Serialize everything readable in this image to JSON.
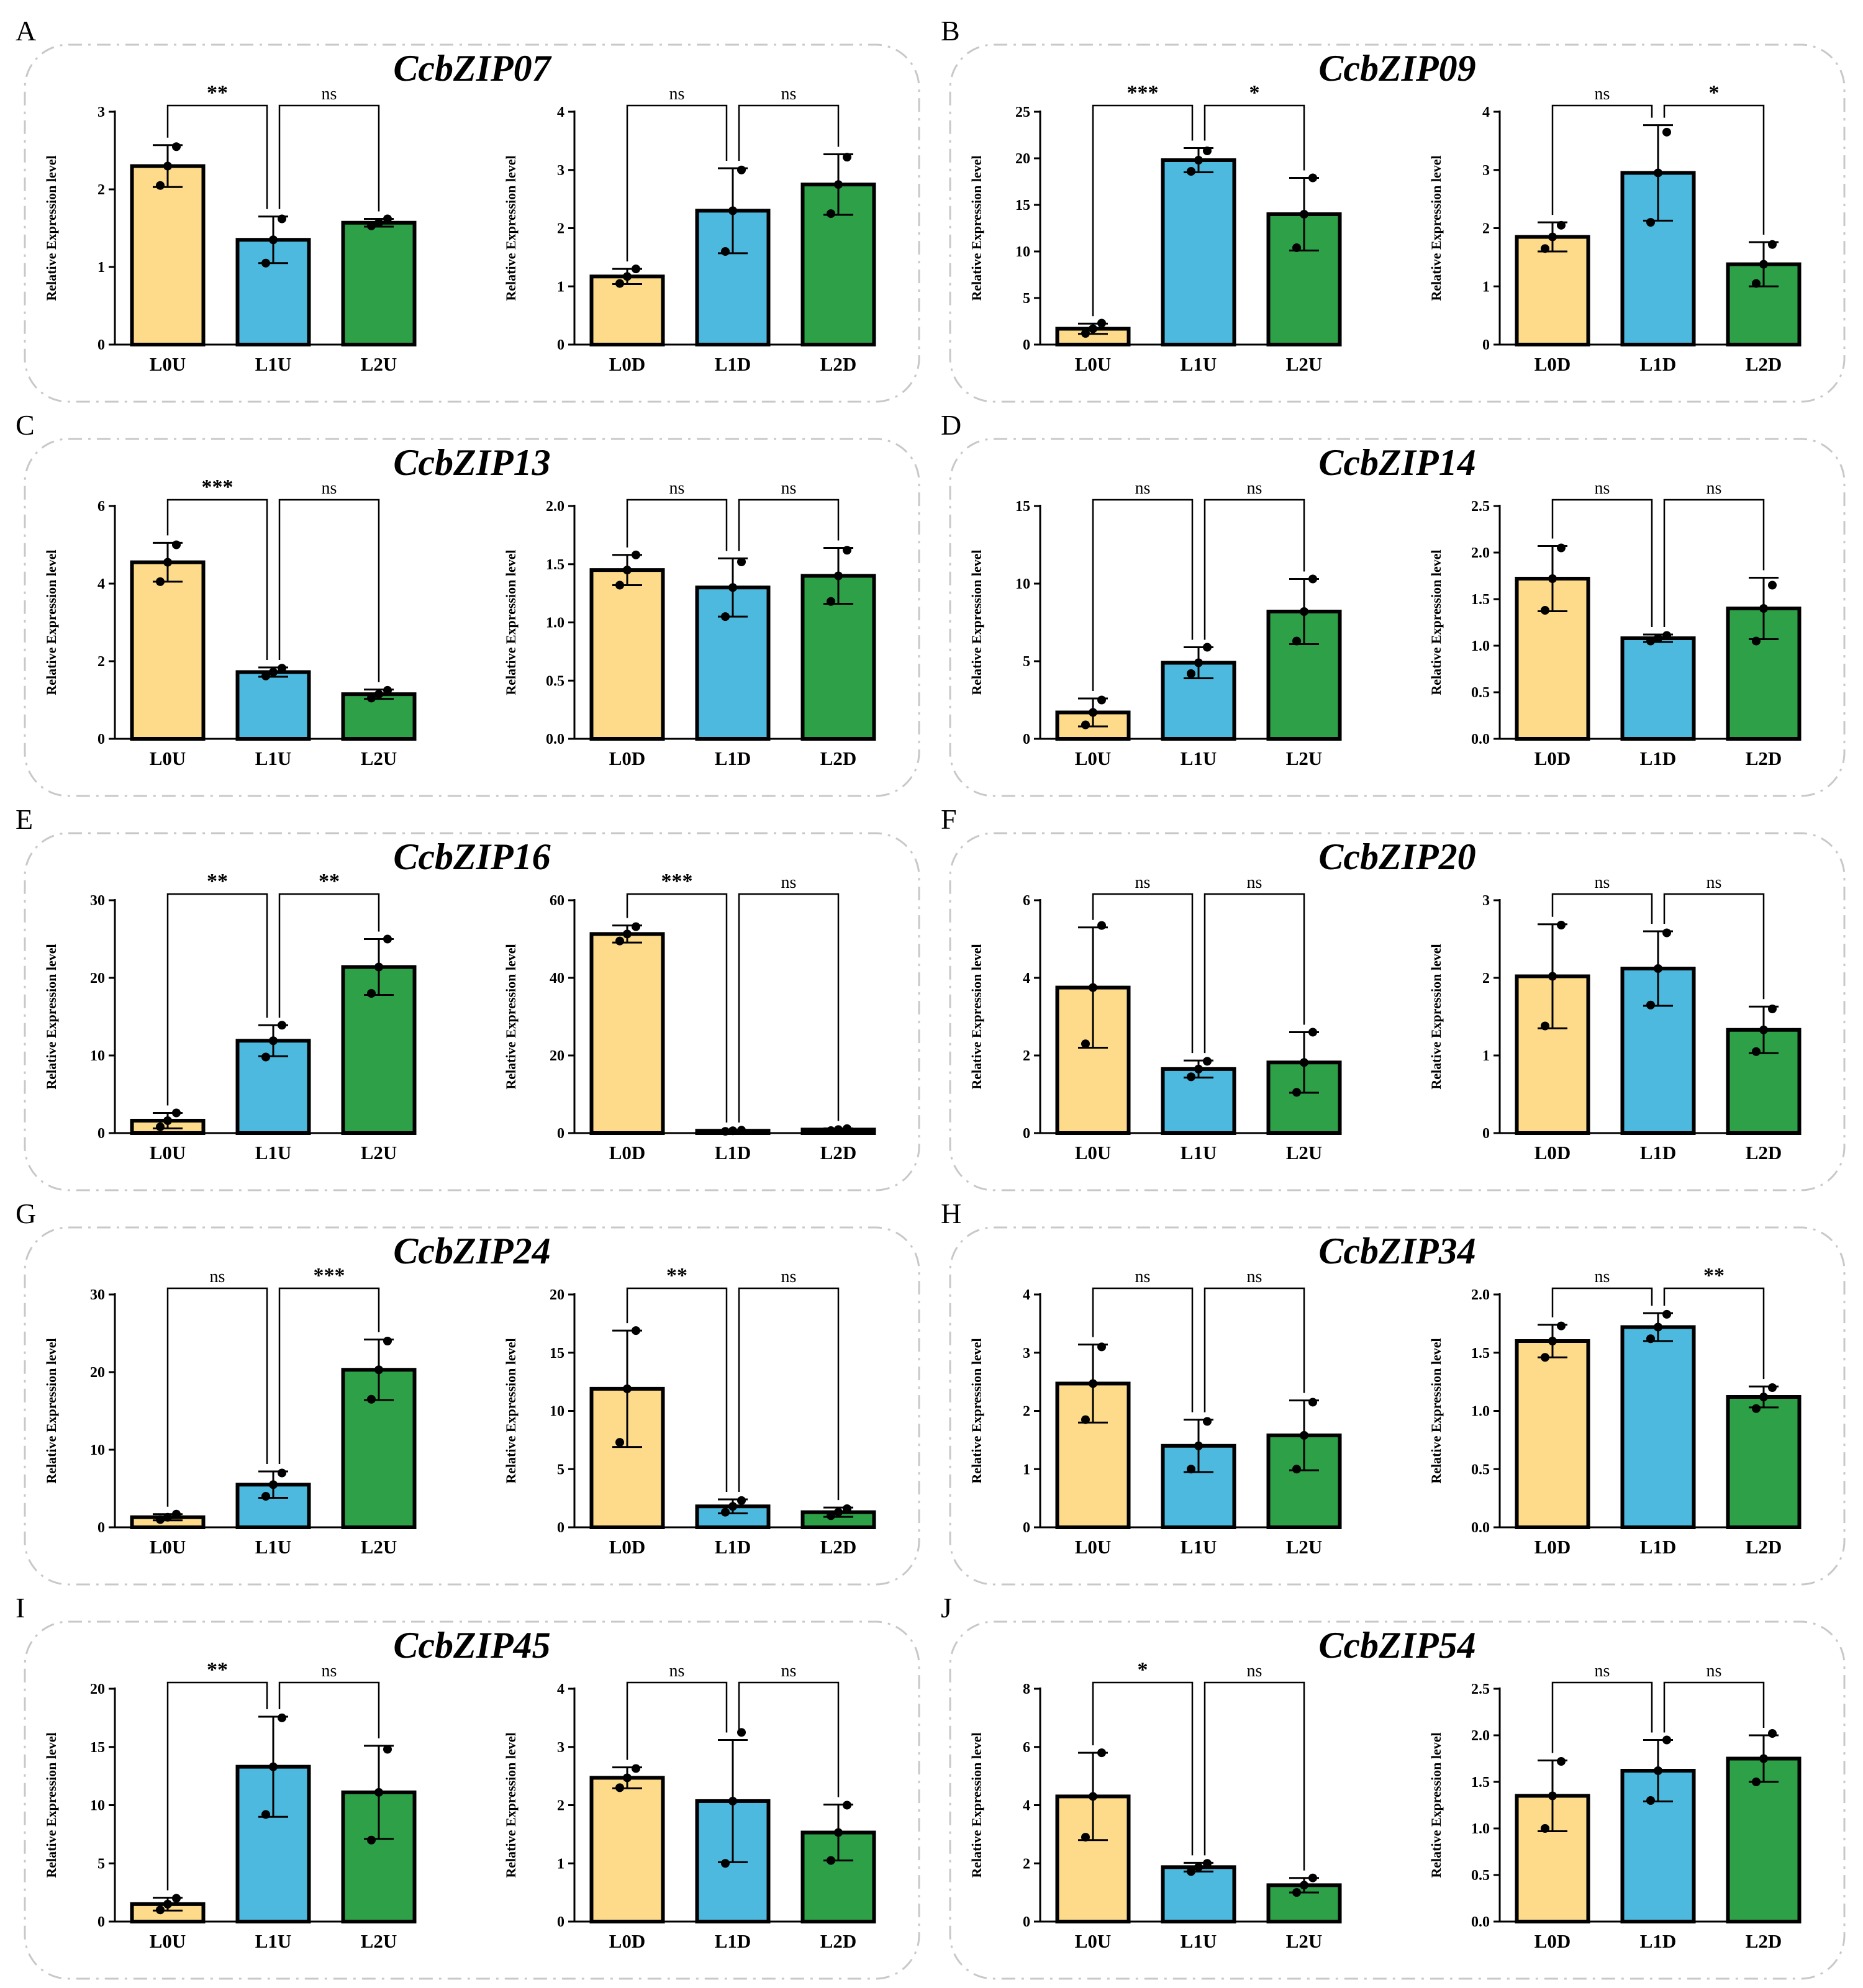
{
  "figure": {
    "colors": {
      "bar0": "#FDDB8A",
      "bar1": "#4DB9DE",
      "bar2": "#2EA148",
      "panel_border": "#c8c8c8"
    },
    "ylabel": "Relative Expression level",
    "panels": [
      {
        "label": "A",
        "gene": "CcbZIP07"
      },
      {
        "label": "B",
        "gene": "CcbZIP09"
      },
      {
        "label": "C",
        "gene": "CcbZIP13"
      },
      {
        "label": "D",
        "gene": "CcbZIP14"
      },
      {
        "label": "E",
        "gene": "CcbZIP16"
      },
      {
        "label": "F",
        "gene": "CcbZIP20"
      },
      {
        "label": "G",
        "gene": "CcbZIP24"
      },
      {
        "label": "H",
        "gene": "CcbZIP34"
      },
      {
        "label": "I",
        "gene": "CcbZIP45"
      },
      {
        "label": "J",
        "gene": "CcbZIP54"
      }
    ]
  },
  "chart_data": [
    {
      "type": "bar",
      "panel": "A",
      "gene": "CcbZIP07",
      "categories": [
        "L0U",
        "L1U",
        "L2U"
      ],
      "values": [
        2.3,
        1.35,
        1.57
      ],
      "errors": [
        0.27,
        0.3,
        0.05
      ],
      "points": [
        [
          2.05,
          2.3,
          2.55
        ],
        [
          1.05,
          1.35,
          1.62
        ],
        [
          1.53,
          1.57,
          1.62
        ]
      ],
      "ylim": [
        0,
        3
      ],
      "ticks": [
        "0",
        "1",
        "2",
        "3"
      ],
      "ylabel": "Relative Expression level",
      "sig": [
        "**",
        "ns"
      ]
    },
    {
      "type": "bar",
      "panel": "A",
      "gene": "CcbZIP07",
      "categories": [
        "L0D",
        "L1D",
        "L2D"
      ],
      "values": [
        1.17,
        2.3,
        2.75
      ],
      "errors": [
        0.13,
        0.73,
        0.52
      ],
      "points": [
        [
          1.05,
          1.17,
          1.3
        ],
        [
          1.6,
          2.3,
          3.0
        ],
        [
          2.25,
          2.75,
          3.22
        ]
      ],
      "ylim": [
        0,
        4
      ],
      "ticks": [
        "0",
        "1",
        "2",
        "3",
        "4"
      ],
      "ylabel": "Relative Expression level",
      "sig": [
        "ns",
        "ns"
      ]
    },
    {
      "type": "bar",
      "panel": "B",
      "gene": "CcbZIP09",
      "categories": [
        "L0U",
        "L1U",
        "L2U"
      ],
      "values": [
        1.7,
        19.8,
        14.0
      ],
      "errors": [
        0.55,
        1.3,
        3.9
      ],
      "points": [
        [
          1.2,
          1.7,
          2.3
        ],
        [
          18.6,
          19.8,
          20.8
        ],
        [
          10.4,
          14.0,
          17.9
        ]
      ],
      "ylim": [
        0,
        25
      ],
      "ticks": [
        "0",
        "5",
        "10",
        "15",
        "20",
        "25"
      ],
      "ylabel": "Relative Expression level",
      "sig": [
        "***",
        "*"
      ]
    },
    {
      "type": "bar",
      "panel": "B",
      "gene": "CcbZIP09",
      "categories": [
        "L0D",
        "L1D",
        "L2D"
      ],
      "values": [
        1.85,
        2.95,
        1.38
      ],
      "errors": [
        0.25,
        0.82,
        0.38
      ],
      "points": [
        [
          1.65,
          1.85,
          2.05
        ],
        [
          2.1,
          2.95,
          3.65
        ],
        [
          1.05,
          1.38,
          1.72
        ]
      ],
      "ylim": [
        0,
        4
      ],
      "ticks": [
        "0",
        "1",
        "2",
        "3",
        "4"
      ],
      "ylabel": "Relative Expression level",
      "sig": [
        "ns",
        "*"
      ]
    },
    {
      "type": "bar",
      "panel": "C",
      "gene": "CcbZIP13",
      "categories": [
        "L0U",
        "L1U",
        "L2U"
      ],
      "values": [
        4.55,
        1.72,
        1.15
      ],
      "errors": [
        0.5,
        0.12,
        0.12
      ],
      "points": [
        [
          4.05,
          4.55,
          5.0
        ],
        [
          1.62,
          1.72,
          1.82
        ],
        [
          1.05,
          1.15,
          1.25
        ]
      ],
      "ylim": [
        0,
        6
      ],
      "ticks": [
        "0",
        "2",
        "4",
        "6"
      ],
      "ylabel": "Relative Expression level",
      "sig": [
        "***",
        "ns"
      ]
    },
    {
      "type": "bar",
      "panel": "C",
      "gene": "CcbZIP13",
      "categories": [
        "L0D",
        "L1D",
        "L2D"
      ],
      "values": [
        1.45,
        1.3,
        1.4
      ],
      "errors": [
        0.13,
        0.25,
        0.24
      ],
      "points": [
        [
          1.32,
          1.45,
          1.58
        ],
        [
          1.05,
          1.3,
          1.52
        ],
        [
          1.18,
          1.4,
          1.62
        ]
      ],
      "ylim": [
        0,
        2
      ],
      "ticks": [
        "0.0",
        "0.5",
        "1.0",
        "1.5",
        "2.0"
      ],
      "ylabel": "Relative Expression level",
      "sig": [
        "ns",
        "ns"
      ]
    },
    {
      "type": "bar",
      "panel": "D",
      "gene": "CcbZIP14",
      "categories": [
        "L0U",
        "L1U",
        "L2U"
      ],
      "values": [
        1.7,
        4.9,
        8.2
      ],
      "errors": [
        0.9,
        1.0,
        2.1
      ],
      "points": [
        [
          0.9,
          1.7,
          2.5
        ],
        [
          4.2,
          4.9,
          5.9
        ],
        [
          6.3,
          8.2,
          10.3
        ]
      ],
      "ylim": [
        0,
        15
      ],
      "ticks": [
        "0",
        "5",
        "10",
        "15"
      ],
      "ylabel": "Relative Expression level",
      "sig": [
        "ns",
        "ns"
      ]
    },
    {
      "type": "bar",
      "panel": "D",
      "gene": "CcbZIP14",
      "categories": [
        "L0D",
        "L1D",
        "L2D"
      ],
      "values": [
        1.72,
        1.08,
        1.4
      ],
      "errors": [
        0.35,
        0.04,
        0.33
      ],
      "points": [
        [
          1.38,
          1.72,
          2.05
        ],
        [
          1.05,
          1.08,
          1.11
        ],
        [
          1.05,
          1.4,
          1.65
        ]
      ],
      "ylim": [
        0,
        2.5
      ],
      "ticks": [
        "0.0",
        "0.5",
        "1.0",
        "1.5",
        "2.0",
        "2.5"
      ],
      "ylabel": "Relative Expression level",
      "sig": [
        "ns",
        "ns"
      ]
    },
    {
      "type": "bar",
      "panel": "E",
      "gene": "CcbZIP16",
      "categories": [
        "L0U",
        "L1U",
        "L2U"
      ],
      "values": [
        1.6,
        11.9,
        21.4
      ],
      "errors": [
        1.0,
        2.0,
        3.6
      ],
      "points": [
        [
          0.8,
          1.6,
          2.6
        ],
        [
          9.8,
          11.9,
          13.9
        ],
        [
          18.0,
          21.4,
          25.0
        ]
      ],
      "ylim": [
        0,
        30
      ],
      "ticks": [
        "0",
        "10",
        "20",
        "30"
      ],
      "ylabel": "Relative Expression level",
      "sig": [
        "**",
        "**"
      ]
    },
    {
      "type": "bar",
      "panel": "E",
      "gene": "CcbZIP16",
      "categories": [
        "L0D",
        "L1D",
        "L2D"
      ],
      "values": [
        51.3,
        0.6,
        0.9
      ],
      "errors": [
        2.2,
        0.2,
        0.3
      ],
      "points": [
        [
          49.5,
          51.3,
          53.2
        ],
        [
          0.45,
          0.6,
          0.75
        ],
        [
          0.65,
          0.9,
          1.15
        ]
      ],
      "ylim": [
        0,
        60
      ],
      "ticks": [
        "0",
        "20",
        "40",
        "60"
      ],
      "ylabel": "Relative Expression level",
      "sig": [
        "***",
        "ns"
      ]
    },
    {
      "type": "bar",
      "panel": "F",
      "gene": "CcbZIP20",
      "categories": [
        "L0U",
        "L1U",
        "L2U"
      ],
      "values": [
        3.75,
        1.65,
        1.82
      ],
      "errors": [
        1.55,
        0.22,
        0.78
      ],
      "points": [
        [
          2.3,
          3.75,
          5.35
        ],
        [
          1.45,
          1.65,
          1.85
        ],
        [
          1.05,
          1.82,
          2.6
        ]
      ],
      "ylim": [
        0,
        6
      ],
      "ticks": [
        "0",
        "2",
        "4",
        "6"
      ],
      "ylabel": "Relative Expression level",
      "sig": [
        "ns",
        "ns"
      ]
    },
    {
      "type": "bar",
      "panel": "F",
      "gene": "CcbZIP20",
      "categories": [
        "L0D",
        "L1D",
        "L2D"
      ],
      "values": [
        2.02,
        2.12,
        1.33
      ],
      "errors": [
        0.67,
        0.48,
        0.3
      ],
      "points": [
        [
          1.38,
          2.02,
          2.68
        ],
        [
          1.65,
          2.12,
          2.58
        ],
        [
          1.05,
          1.33,
          1.6
        ]
      ],
      "ylim": [
        0,
        3
      ],
      "ticks": [
        "0",
        "1",
        "2",
        "3"
      ],
      "ylabel": "Relative Expression level",
      "sig": [
        "ns",
        "ns"
      ]
    },
    {
      "type": "bar",
      "panel": "G",
      "gene": "CcbZIP24",
      "categories": [
        "L0U",
        "L1U",
        "L2U"
      ],
      "values": [
        1.3,
        5.5,
        20.3
      ],
      "errors": [
        0.4,
        1.7,
        3.9
      ],
      "points": [
        [
          1.0,
          1.3,
          1.7
        ],
        [
          4.0,
          5.5,
          7.0
        ],
        [
          16.5,
          20.3,
          24.0
        ]
      ],
      "ylim": [
        0,
        30
      ],
      "ticks": [
        "0",
        "10",
        "20",
        "30"
      ],
      "ylabel": "Relative Expression level",
      "sig": [
        "ns",
        "***"
      ]
    },
    {
      "type": "bar",
      "panel": "G",
      "gene": "CcbZIP24",
      "categories": [
        "L0D",
        "L1D",
        "L2D"
      ],
      "values": [
        11.9,
        1.8,
        1.3
      ],
      "errors": [
        5.0,
        0.6,
        0.4
      ],
      "points": [
        [
          7.3,
          11.9,
          16.9
        ],
        [
          1.3,
          1.8,
          2.3
        ],
        [
          1.0,
          1.3,
          1.6
        ]
      ],
      "ylim": [
        0,
        20
      ],
      "ticks": [
        "0",
        "5",
        "10",
        "15",
        "20"
      ],
      "ylabel": "Relative Expression level",
      "sig": [
        "**",
        "ns"
      ]
    },
    {
      "type": "bar",
      "panel": "H",
      "gene": "CcbZIP34",
      "categories": [
        "L0U",
        "L1U",
        "L2U"
      ],
      "values": [
        2.47,
        1.4,
        1.58
      ],
      "errors": [
        0.67,
        0.45,
        0.6
      ],
      "points": [
        [
          1.85,
          2.47,
          3.1
        ],
        [
          1.0,
          1.4,
          1.82
        ],
        [
          1.0,
          1.58,
          2.15
        ]
      ],
      "ylim": [
        0,
        4
      ],
      "ticks": [
        "0",
        "1",
        "2",
        "3",
        "4"
      ],
      "ylabel": "Relative Expression level",
      "sig": [
        "ns",
        "ns"
      ]
    },
    {
      "type": "bar",
      "panel": "H",
      "gene": "CcbZIP34",
      "categories": [
        "L0D",
        "L1D",
        "L2D"
      ],
      "values": [
        1.6,
        1.72,
        1.12
      ],
      "errors": [
        0.14,
        0.12,
        0.09
      ],
      "points": [
        [
          1.46,
          1.6,
          1.73
        ],
        [
          1.62,
          1.72,
          1.83
        ],
        [
          1.02,
          1.12,
          1.2
        ]
      ],
      "ylim": [
        0,
        2
      ],
      "ticks": [
        "0.0",
        "0.5",
        "1.0",
        "1.5",
        "2.0"
      ],
      "ylabel": "Relative Expression level",
      "sig": [
        "ns",
        "**"
      ]
    },
    {
      "type": "bar",
      "panel": "I",
      "gene": "CcbZIP45",
      "categories": [
        "L0U",
        "L1U",
        "L2U"
      ],
      "values": [
        1.5,
        13.3,
        11.1
      ],
      "errors": [
        0.55,
        4.3,
        4.0
      ],
      "points": [
        [
          1.0,
          1.5,
          2.0
        ],
        [
          9.2,
          13.3,
          17.5
        ],
        [
          7.0,
          11.1,
          14.8
        ]
      ],
      "ylim": [
        0,
        20
      ],
      "ticks": [
        "0",
        "5",
        "10",
        "15",
        "20"
      ],
      "ylabel": "Relative Expression level",
      "sig": [
        "**",
        "ns"
      ]
    },
    {
      "type": "bar",
      "panel": "I",
      "gene": "CcbZIP45",
      "categories": [
        "L0D",
        "L1D",
        "L2D"
      ],
      "values": [
        2.47,
        2.07,
        1.53
      ],
      "errors": [
        0.18,
        1.05,
        0.48
      ],
      "points": [
        [
          2.3,
          2.47,
          2.63
        ],
        [
          1.0,
          2.07,
          3.25
        ],
        [
          1.05,
          1.53,
          2.0
        ]
      ],
      "ylim": [
        0,
        4
      ],
      "ticks": [
        "0",
        "1",
        "2",
        "3",
        "4"
      ],
      "ylabel": "Relative Expression level",
      "sig": [
        "ns",
        "ns"
      ]
    },
    {
      "type": "bar",
      "panel": "J",
      "gene": "CcbZIP54",
      "categories": [
        "L0U",
        "L1U",
        "L2U"
      ],
      "values": [
        4.3,
        1.87,
        1.25
      ],
      "errors": [
        1.5,
        0.15,
        0.25
      ],
      "points": [
        [
          2.9,
          4.3,
          5.8
        ],
        [
          1.72,
          1.87,
          2.0
        ],
        [
          1.0,
          1.25,
          1.5
        ]
      ],
      "ylim": [
        0,
        8
      ],
      "ticks": [
        "0",
        "2",
        "4",
        "6",
        "8"
      ],
      "ylabel": "Relative Expression level",
      "sig": [
        "*",
        "ns"
      ]
    },
    {
      "type": "bar",
      "panel": "J",
      "gene": "CcbZIP54",
      "categories": [
        "L0D",
        "L1D",
        "L2D"
      ],
      "values": [
        1.35,
        1.62,
        1.75
      ],
      "errors": [
        0.38,
        0.33,
        0.25
      ],
      "points": [
        [
          1.0,
          1.35,
          1.72
        ],
        [
          1.3,
          1.62,
          1.95
        ],
        [
          1.5,
          1.75,
          2.02
        ]
      ],
      "ylim": [
        0,
        2.5
      ],
      "ticks": [
        "0.0",
        "0.5",
        "1.0",
        "1.5",
        "2.0",
        "2.5"
      ],
      "ylabel": "Relative Expression level",
      "sig": [
        "ns",
        "ns"
      ]
    }
  ]
}
